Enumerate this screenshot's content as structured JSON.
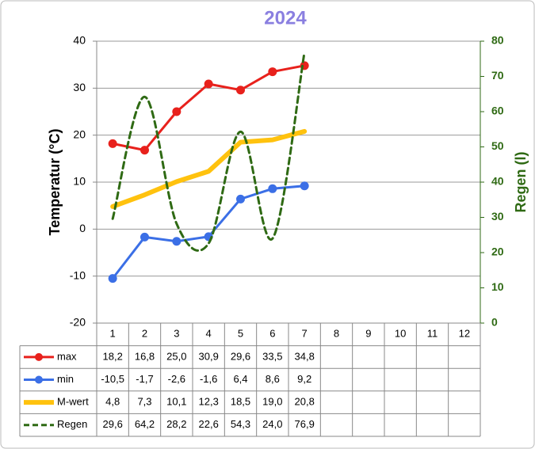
{
  "chart_data": {
    "type": "line",
    "title": "2024",
    "ylabel": "Temperatur (°C)",
    "y2label": "Regen (l)",
    "categories": [
      "1",
      "2",
      "3",
      "4",
      "5",
      "6",
      "7",
      "8",
      "9",
      "10",
      "11",
      "12"
    ],
    "ylim": [
      -20,
      40
    ],
    "yticks": [
      -20,
      -10,
      0,
      10,
      20,
      30,
      40
    ],
    "y2lim": [
      0,
      80
    ],
    "y2ticks": [
      0,
      10,
      20,
      30,
      40,
      50,
      60,
      70,
      80
    ],
    "grid": true,
    "legend": "table",
    "series": [
      {
        "name": "max",
        "color": "#e8211c",
        "marker": "circle",
        "values": [
          18.2,
          16.8,
          25.0,
          30.9,
          29.6,
          33.5,
          34.8,
          null,
          null,
          null,
          null,
          null
        ],
        "value_labels": [
          "18,2",
          "16,8",
          "25,0",
          "30,9",
          "29,6",
          "33,5",
          "34,8",
          null,
          null,
          null,
          null,
          null
        ]
      },
      {
        "name": "min",
        "color": "#3b6fe6",
        "marker": "circle",
        "values": [
          -10.5,
          -1.7,
          -2.6,
          -1.6,
          6.4,
          8.6,
          9.2,
          null,
          null,
          null,
          null,
          null
        ],
        "value_labels": [
          "-10,5",
          "-1,7",
          "-2,6",
          "-1,6",
          "6,4",
          "8,6",
          "9,2",
          null,
          null,
          null,
          null,
          null
        ]
      },
      {
        "name": "M-wert",
        "color": "#ffc20e",
        "marker": "none",
        "values": [
          4.8,
          7.3,
          10.1,
          12.3,
          18.5,
          19.0,
          20.8,
          null,
          null,
          null,
          null,
          null
        ],
        "value_labels": [
          "4,8",
          "7,3",
          "10,1",
          "12,3",
          "18,5",
          "19,0",
          "20,8",
          null,
          null,
          null,
          null,
          null
        ]
      },
      {
        "name": "Regen",
        "color": "#2f6a14",
        "marker": "none",
        "dashed": true,
        "smooth": true,
        "axis": "y2",
        "values": [
          29.6,
          64.2,
          28.2,
          22.6,
          54.3,
          24.0,
          76.9,
          null,
          null,
          null,
          null,
          null
        ],
        "value_labels": [
          "29,6",
          "64,2",
          "28,2",
          "22,6",
          "54,3",
          "24,0",
          "76,9",
          null,
          null,
          null,
          null,
          null
        ]
      }
    ]
  }
}
